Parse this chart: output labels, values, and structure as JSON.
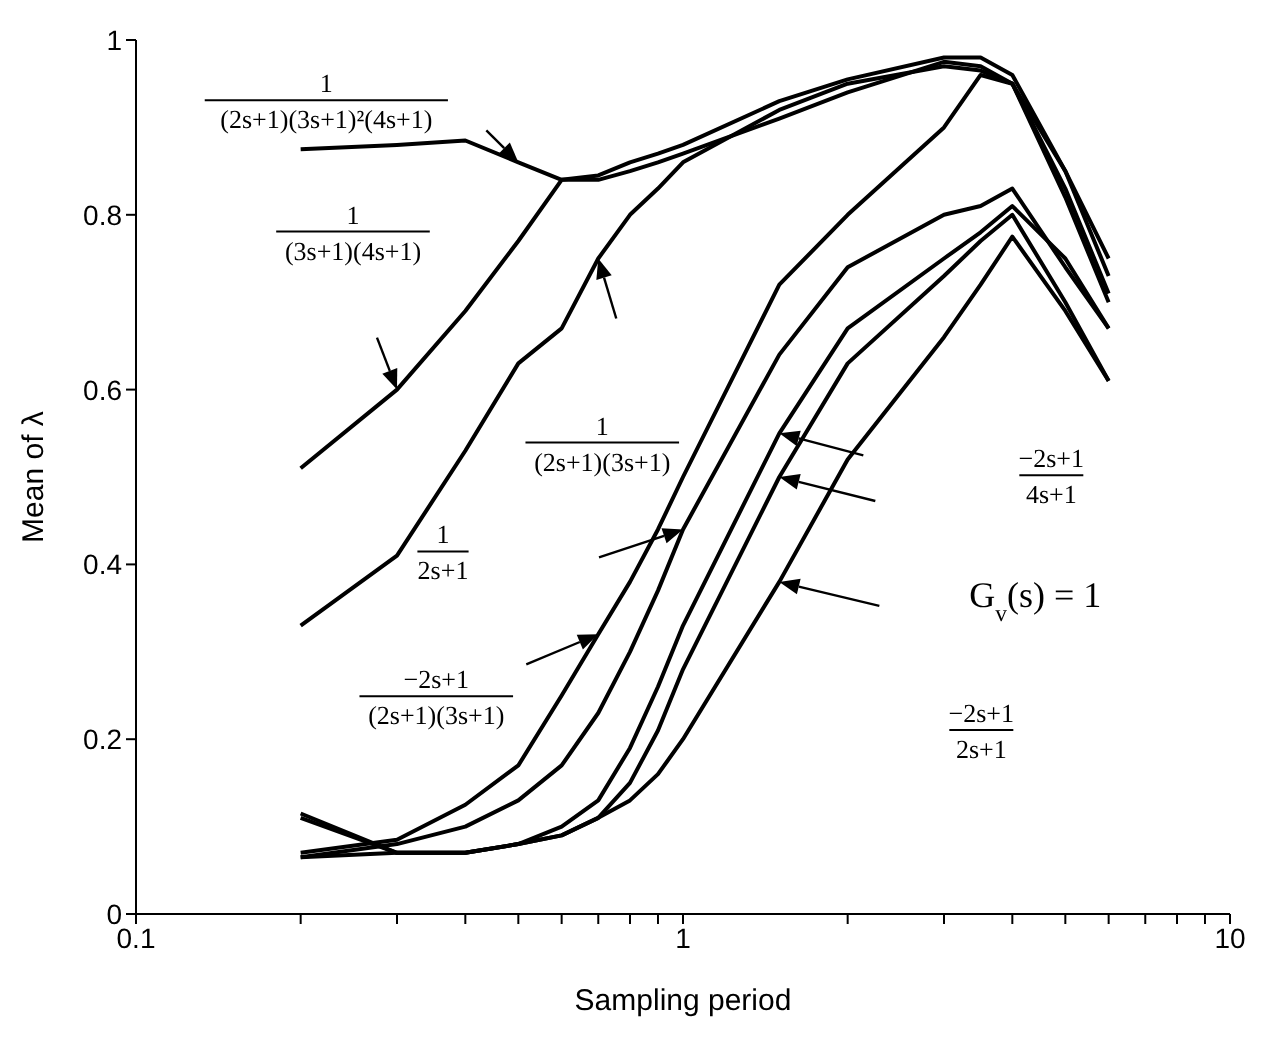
{
  "chart_data": {
    "type": "line",
    "xlabel": "Sampling period",
    "ylabel": "Mean of λ",
    "log": "x",
    "line_style": "solid",
    "xlim": [
      0.1,
      10
    ],
    "xticks": [
      0.1,
      {
        "value": 0.2,
        "label": null
      },
      {
        "value": 0.3,
        "label": null
      },
      {
        "value": 0.4,
        "label": null
      },
      {
        "value": 0.5,
        "label": null
      },
      {
        "value": 0.6,
        "label": null
      },
      {
        "value": 0.7,
        "label": null
      },
      {
        "value": 0.8,
        "label": null
      },
      {
        "value": 0.9,
        "label": null
      },
      1,
      {
        "value": 2,
        "label": null
      },
      {
        "value": 3,
        "label": null
      },
      {
        "value": 4,
        "label": null
      },
      {
        "value": 5,
        "label": null
      },
      {
        "value": 6,
        "label": null
      },
      {
        "value": 7,
        "label": null
      },
      {
        "value": 8,
        "label": null
      },
      {
        "value": 9,
        "label": null
      },
      10
    ],
    "ylim": [
      0,
      1
    ],
    "yticks": [
      0,
      0.2,
      0.4,
      0.6,
      0.8,
      1
    ],
    "x": [
      0.2,
      0.3,
      0.4,
      0.5,
      0.6,
      0.7,
      0.8,
      0.9,
      1,
      1.5,
      2,
      3,
      3.5,
      4,
      5,
      6
    ],
    "series": [
      {
        "color": "#000000",
        "values": [
          0.875,
          0.88,
          0.885,
          0.86,
          0.84,
          0.84,
          0.85,
          0.86,
          0.87,
          0.91,
          0.94,
          0.975,
          0.97,
          0.95,
          0.85,
          0.75
        ]
      },
      {
        "color": "#000000",
        "values": [
          0.51,
          0.6,
          0.69,
          0.77,
          0.84,
          0.845,
          0.86,
          0.87,
          0.88,
          0.93,
          0.955,
          0.98,
          0.98,
          0.96,
          0.85,
          0.73
        ]
      },
      {
        "color": "#000000",
        "values": [
          0.33,
          0.41,
          0.53,
          0.63,
          0.67,
          0.75,
          0.8,
          0.83,
          0.86,
          0.92,
          0.95,
          0.97,
          0.965,
          0.95,
          0.83,
          0.71
        ]
      },
      {
        "color": "#000000",
        "values": [
          0.07,
          0.085,
          0.125,
          0.17,
          0.25,
          0.32,
          0.38,
          0.44,
          0.5,
          0.72,
          0.8,
          0.9,
          0.96,
          0.95,
          0.82,
          0.7
        ]
      },
      {
        "color": "#000000",
        "values": [
          0.065,
          0.08,
          0.1,
          0.13,
          0.17,
          0.23,
          0.3,
          0.37,
          0.44,
          0.64,
          0.74,
          0.8,
          0.81,
          0.83,
          0.74,
          0.67
        ]
      },
      {
        "color": "#000000",
        "values": [
          0.115,
          0.07,
          0.07,
          0.08,
          0.1,
          0.13,
          0.19,
          0.26,
          0.33,
          0.55,
          0.67,
          0.75,
          0.78,
          0.81,
          0.75,
          0.67
        ]
      },
      {
        "color": "#000000",
        "values": [
          0.11,
          0.07,
          0.07,
          0.08,
          0.09,
          0.11,
          0.15,
          0.21,
          0.28,
          0.5,
          0.63,
          0.73,
          0.77,
          0.8,
          0.7,
          0.61
        ]
      },
      {
        "color": "#000000",
        "values": [
          0.065,
          0.07,
          0.07,
          0.08,
          0.09,
          0.11,
          0.13,
          0.16,
          0.2,
          0.38,
          0.52,
          0.66,
          0.72,
          0.775,
          0.69,
          0.61
        ]
      }
    ],
    "annotations": [
      "1",
      "(2s+1)(3s+1)²(4s+1)",
      "1",
      "(3s+1)(4s+1)",
      "1",
      "(2s+1)(3s+1)",
      "1",
      "2s+1",
      "−2s+1",
      "(2s+1)(3s+1)",
      "−2s+1",
      "4s+1",
      "G$_{v}$(s) = 1",
      "−2s+1",
      "2s+1"
    ]
  }
}
